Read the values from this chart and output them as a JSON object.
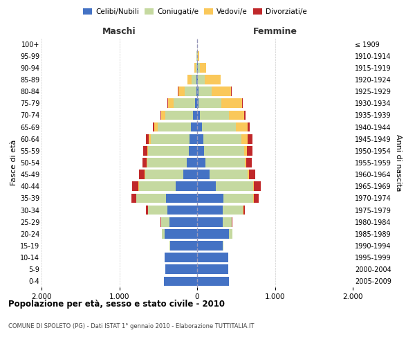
{
  "age_groups": [
    "0-4",
    "5-9",
    "10-14",
    "15-19",
    "20-24",
    "25-29",
    "30-34",
    "35-39",
    "40-44",
    "45-49",
    "50-54",
    "55-59",
    "60-64",
    "65-69",
    "70-74",
    "75-79",
    "80-84",
    "85-89",
    "90-94",
    "95-99",
    "100+"
  ],
  "birth_years": [
    "2005-2009",
    "2000-2004",
    "1995-1999",
    "1990-1994",
    "1985-1989",
    "1980-1984",
    "1975-1979",
    "1970-1974",
    "1965-1969",
    "1960-1964",
    "1955-1959",
    "1950-1954",
    "1945-1949",
    "1940-1944",
    "1935-1939",
    "1930-1934",
    "1925-1929",
    "1920-1924",
    "1915-1919",
    "1910-1914",
    "≤ 1909"
  ],
  "males": {
    "celibi": [
      430,
      410,
      420,
      350,
      420,
      360,
      380,
      400,
      280,
      180,
      130,
      110,
      100,
      80,
      50,
      25,
      10,
      5,
      0,
      0,
      0
    ],
    "coniugati": [
      0,
      0,
      0,
      2,
      30,
      100,
      250,
      380,
      470,
      490,
      510,
      520,
      500,
      430,
      360,
      280,
      150,
      70,
      20,
      8,
      2
    ],
    "vedovi": [
      0,
      0,
      0,
      0,
      2,
      5,
      5,
      5,
      5,
      5,
      5,
      10,
      20,
      40,
      50,
      70,
      80,
      50,
      20,
      5,
      1
    ],
    "divorziati": [
      0,
      0,
      0,
      2,
      5,
      10,
      20,
      60,
      80,
      70,
      55,
      50,
      40,
      15,
      15,
      10,
      5,
      2,
      0,
      0,
      0
    ]
  },
  "females": {
    "nubili": [
      410,
      400,
      400,
      330,
      410,
      330,
      330,
      340,
      240,
      160,
      110,
      90,
      80,
      60,
      35,
      20,
      15,
      10,
      5,
      0,
      0
    ],
    "coniugate": [
      0,
      0,
      0,
      5,
      40,
      110,
      260,
      380,
      480,
      490,
      500,
      510,
      490,
      440,
      370,
      290,
      170,
      90,
      30,
      10,
      2
    ],
    "vedove": [
      0,
      0,
      0,
      0,
      2,
      5,
      5,
      10,
      10,
      15,
      20,
      40,
      80,
      150,
      200,
      270,
      250,
      200,
      80,
      20,
      2
    ],
    "divorziate": [
      0,
      0,
      0,
      2,
      5,
      10,
      20,
      60,
      90,
      80,
      70,
      70,
      60,
      25,
      20,
      10,
      5,
      2,
      0,
      0,
      0
    ]
  },
  "colors": {
    "celibi": "#4472C4",
    "coniugati": "#C5D9A0",
    "vedovi": "#FAC85A",
    "divorziati": "#C0282A"
  },
  "title": "Popolazione per età, sesso e stato civile - 2010",
  "subtitle": "COMUNE DI SPOLETO (PG) - Dati ISTAT 1° gennaio 2010 - Elaborazione TUTTITALIA.IT",
  "xlabel_left": "Maschi",
  "xlabel_right": "Femmine",
  "ylabel_left": "Fasce di età",
  "ylabel_right": "Anni di nascita",
  "xlim": 2000,
  "legend_labels": [
    "Celibi/Nubili",
    "Coniugati/e",
    "Vedovi/e",
    "Divorziati/e"
  ],
  "background_color": "#ffffff",
  "grid_color": "#cccccc"
}
